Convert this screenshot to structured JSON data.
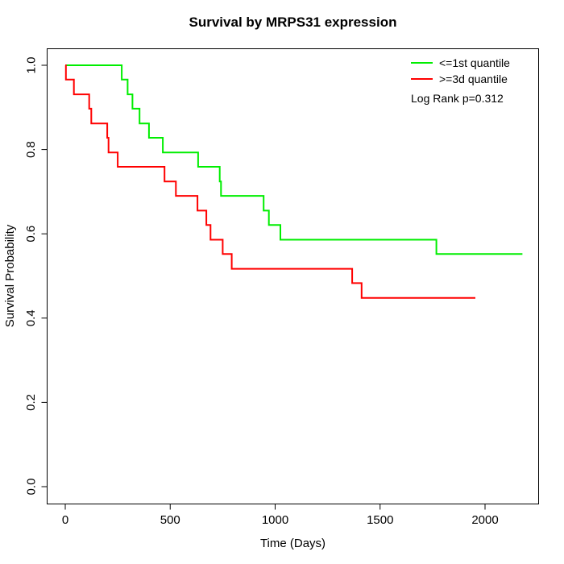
{
  "chart_data": {
    "type": "line",
    "subtype": "kaplan-meier-step",
    "title": "Survival by MRPS31 expression",
    "xlabel": "Time (Days)",
    "ylabel": "Survival Probability",
    "xlim": [
      -85,
      2255
    ],
    "ylim": [
      -0.04,
      1.04
    ],
    "x_ticks": [
      0,
      500,
      1000,
      1500,
      2000
    ],
    "y_ticks": [
      "0.0",
      "0.2",
      "0.4",
      "0.6",
      "0.8",
      "1.0"
    ],
    "grid": false,
    "legend_position": "top-right",
    "annotation": "Log Rank p=0.312",
    "series": [
      {
        "name": "<=1st quantile",
        "color": "#00EE00",
        "points": [
          [
            0,
            1.0
          ],
          [
            269,
            0.966
          ],
          [
            297,
            0.931
          ],
          [
            320,
            0.897
          ],
          [
            354,
            0.862
          ],
          [
            399,
            0.828
          ],
          [
            465,
            0.793
          ],
          [
            633,
            0.759
          ],
          [
            736,
            0.724
          ],
          [
            742,
            0.69
          ],
          [
            945,
            0.655
          ],
          [
            970,
            0.621
          ],
          [
            1025,
            0.586
          ],
          [
            1768,
            0.552
          ],
          [
            2178,
            0.552
          ]
        ]
      },
      {
        "name": ">=3d quantile",
        "color": "#FF0000",
        "points": [
          [
            0,
            1.0
          ],
          [
            3,
            0.966
          ],
          [
            41,
            0.931
          ],
          [
            114,
            0.897
          ],
          [
            124,
            0.862
          ],
          [
            200,
            0.828
          ],
          [
            206,
            0.793
          ],
          [
            250,
            0.759
          ],
          [
            473,
            0.724
          ],
          [
            527,
            0.69
          ],
          [
            630,
            0.655
          ],
          [
            672,
            0.621
          ],
          [
            692,
            0.586
          ],
          [
            750,
            0.552
          ],
          [
            793,
            0.517
          ],
          [
            1367,
            0.483
          ],
          [
            1412,
            0.448
          ],
          [
            1954,
            0.448
          ]
        ]
      }
    ]
  }
}
